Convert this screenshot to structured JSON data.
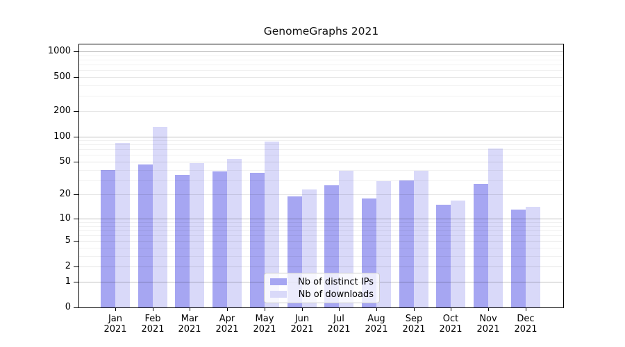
{
  "title": "GenomeGraphs 2021",
  "chart_data": {
    "type": "bar",
    "title": "GenomeGraphs 2021",
    "categories": [
      "Jan",
      "Feb",
      "Mar",
      "Apr",
      "May",
      "Jun",
      "Jul",
      "Aug",
      "Sep",
      "Oct",
      "Nov",
      "Dec"
    ],
    "category_year": "2021",
    "series": [
      {
        "name": "Nb of distinct IPs",
        "color": "#a6a6f2",
        "values": [
          40,
          46,
          35,
          38,
          37,
          19,
          26,
          18,
          30,
          15,
          27,
          13
        ]
      },
      {
        "name": "Nb of downloads",
        "color": "#d9d9f9",
        "values": [
          84,
          128,
          48,
          54,
          86,
          23,
          39,
          29,
          39,
          17,
          72,
          14
        ]
      }
    ],
    "y_scale": "log10(1+y)",
    "y_ticks": [
      0,
      1,
      2,
      5,
      10,
      20,
      50,
      100,
      200,
      500,
      1000
    ],
    "y_minor_gridlines": [
      3,
      4,
      6,
      7,
      8,
      9,
      30,
      40,
      60,
      70,
      80,
      90,
      300,
      400,
      600,
      700,
      800,
      900
    ],
    "ylim": [
      0,
      1000
    ],
    "grid": true,
    "legend_position": "inside-bottom-center"
  },
  "legend": {
    "items": [
      {
        "label": "Nb of distinct IPs",
        "color": "#a6a6f2"
      },
      {
        "label": "Nb of downloads",
        "color": "#d9d9f9"
      }
    ]
  },
  "colors": {
    "axis": "#000000",
    "background": "#ffffff",
    "bar_distinct_ips": "#a6a6f2",
    "bar_downloads": "#d9d9f9"
  }
}
